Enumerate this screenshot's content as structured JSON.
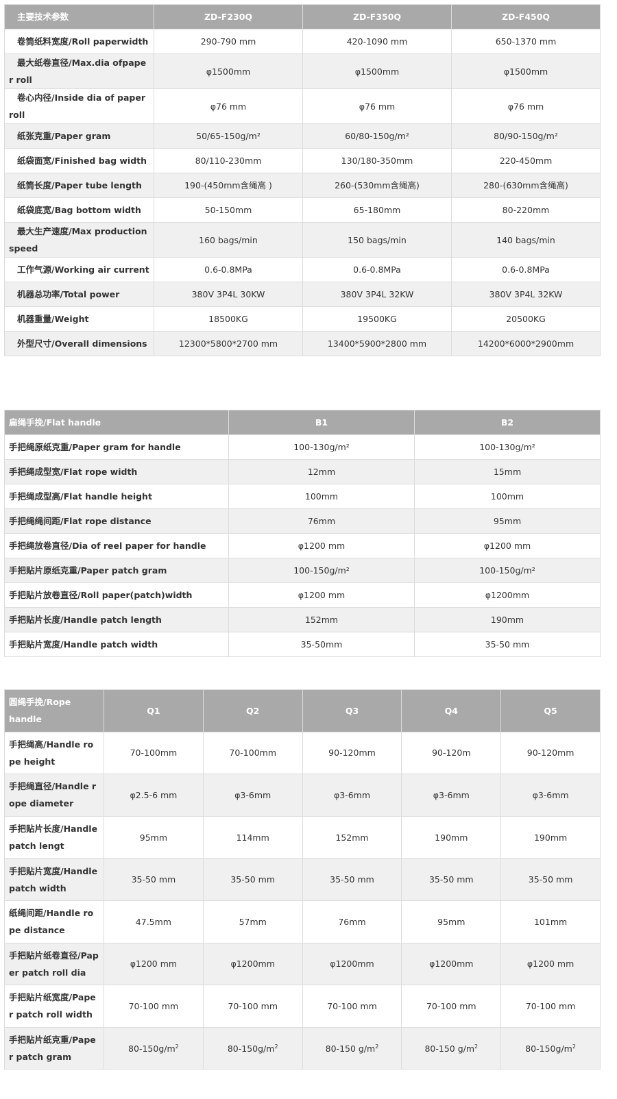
{
  "main_specs": {
    "headers": [
      "主要技术参数",
      "ZD-F230Q",
      "ZD-F350Q",
      "ZD-F450Q"
    ],
    "rows": [
      [
        "卷筒纸料宽度/Roll paperwidth",
        "290-790 mm",
        "420-1090 mm",
        "650-1370 mm"
      ],
      [
        "最大纸卷直径/Max.dia ofpaper roll",
        "φ1500mm",
        "φ1500mm",
        "φ1500mm"
      ],
      [
        "卷心内径/Inside dia of paper roll",
        "φ76 mm",
        "φ76 mm",
        "φ76 mm"
      ],
      [
        "纸张克重/Paper gram",
        "50/65-150g/m²",
        "60/80-150g/m²",
        "80/90-150g/m²"
      ],
      [
        "纸袋面宽/Finished bag width",
        "80/110-230mm",
        "130/180-350mm",
        "220-450mm"
      ],
      [
        "纸筒长度/Paper tube length",
        "190-(450mm含绳高 )",
        "260-(530mm含绳高)",
        "280-(630mm含绳高)"
      ],
      [
        "纸袋底宽/Bag bottom width",
        "50-150mm",
        "65-180mm",
        "80-220mm"
      ],
      [
        "最大生产速度/Max production speed",
        "160 bags/min",
        "150 bags/min",
        "140 bags/min"
      ],
      [
        "工作气源/Working air current",
        "0.6-0.8MPa",
        "0.6-0.8MPa",
        "0.6-0.8MPa"
      ],
      [
        "机器总功率/Total power",
        "380V 3P4L 30KW",
        "380V 3P4L 32KW",
        "380V 3P4L 32KW"
      ],
      [
        "机器重量/Weight",
        "18500KG",
        "19500KG",
        "20500KG"
      ],
      [
        "外型尺寸/Overall dimensions",
        "12300*5800*2700 mm",
        "13400*5900*2800 mm",
        "14200*6000*2900mm"
      ]
    ]
  },
  "flat_handle": {
    "headers": [
      "扁绳手挽/Flat handle",
      "B1",
      "B2"
    ],
    "rows": [
      [
        "手把绳原纸克重/Paper gram for handle",
        "100-130g/m²",
        "100-130g/m²"
      ],
      [
        "手把绳成型宽/Flat rope width",
        "12mm",
        "15mm"
      ],
      [
        "手把绳成型高/Flat handle height",
        "100mm",
        "100mm"
      ],
      [
        "手把绳绳间距/Flat rope distance",
        "76mm",
        "95mm"
      ],
      [
        "手把绳放卷直径/Dia of reel paper for handle",
        "φ1200 mm",
        "φ1200 mm"
      ],
      [
        "手把贴片原纸克重/Paper patch gram",
        "100-150g/m²",
        "100-150g/m²"
      ],
      [
        "手把贴片放卷直径/Roll paper(patch)width",
        "φ1200 mm",
        "φ1200mm"
      ],
      [
        "手把贴片长度/Handle patch length",
        "152mm",
        "190mm"
      ],
      [
        "手把贴片宽度/Handle patch width",
        "35-50mm",
        "35-50 mm"
      ]
    ]
  },
  "rope_handle": {
    "headers": [
      "圆绳手挽/Rope handle",
      "Q1",
      "Q2",
      "Q3",
      "Q4",
      "Q5"
    ],
    "rows": [
      [
        "手把绳高/Handle rope height",
        "70-100mm",
        "70-100mm",
        "90-120mm",
        "90-120m",
        "90-120mm"
      ],
      [
        "手把绳直径/Handle rope diameter",
        "φ2.5-6 mm",
        "φ3-6mm",
        "φ3-6mm",
        "φ3-6mm",
        "φ3-6mm"
      ],
      [
        "手把贴片长度/Handle patch lengt",
        "95mm",
        "114mm",
        "152mm",
        "190mm",
        "190mm"
      ],
      [
        "手把贴片宽度/Handle patch width",
        "35-50 mm",
        "35-50 mm",
        "35-50 mm",
        "35-50 mm",
        "35-50 mm"
      ],
      [
        "纸绳间距/Handle rope distance",
        "47.5mm",
        "57mm",
        "76mm",
        "95mm",
        "101mm"
      ],
      [
        "手把贴片纸卷直径/Paper patch roll dia",
        "φ1200 mm",
        "φ1200mm",
        "φ1200mm",
        "φ1200mm",
        "φ1200 mm"
      ],
      [
        "手把贴片纸宽度/Paper patch roll width",
        "70-100 mm",
        "70-100 mm",
        "70-100 mm",
        "70-100 mm",
        "70-100 mm"
      ]
    ],
    "gram_row": {
      "label": "手把贴片纸克重/Paper patch gram",
      "values": [
        "80-150g/m",
        "80-150g/m",
        "80-150 g/m",
        "80-150 g/m",
        "80-150g/m"
      ],
      "sup": "2"
    }
  },
  "colors": {
    "header_bg": "#a9a9a9",
    "alt_row_bg": "#f0f0f0",
    "border": "#dcdcdc"
  }
}
